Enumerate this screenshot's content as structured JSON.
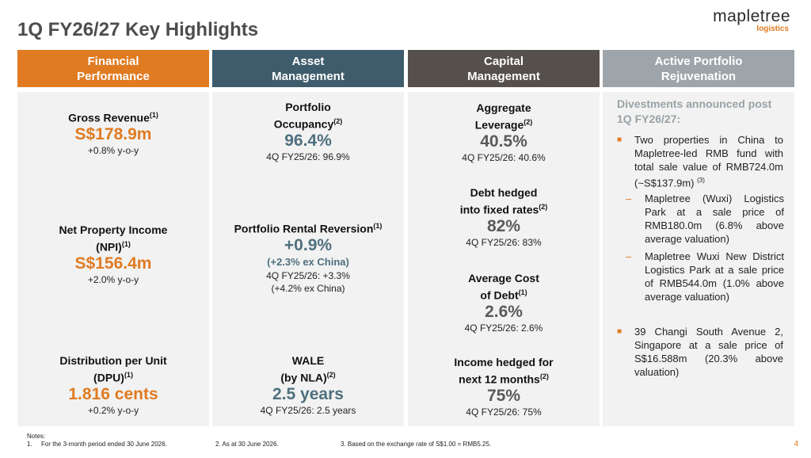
{
  "title": "1Q FY26/27 Key Highlights",
  "logo": {
    "main": "mapletree",
    "sub": "logistics"
  },
  "columns": [
    {
      "line1": "Financial",
      "line2": "Performance"
    },
    {
      "line1": "Asset",
      "line2": "Management"
    },
    {
      "line1": "Capital",
      "line2": "Management"
    },
    {
      "line1": "Active Portfolio",
      "line2": "Rejuvenation"
    }
  ],
  "financial": {
    "gross_revenue": {
      "label": "Gross Revenue",
      "ref": "(1)",
      "value": "S$178.9m",
      "sub": "+0.8% y-o-y"
    },
    "npi": {
      "label1": "Net Property Income",
      "label2": "(NPI)",
      "ref": "(1)",
      "value": "S$156.4m",
      "sub": "+2.0% y-o-y"
    },
    "dpu": {
      "label1": "Distribution per Unit",
      "label2": "(DPU)",
      "ref": "(1)",
      "value": "1.816 cents",
      "sub": "+0.2% y-o-y"
    }
  },
  "asset": {
    "occupancy": {
      "label1": "Portfolio",
      "label2": "Occupancy",
      "ref": "(2)",
      "value": "96.4%",
      "sub": "4Q FY25/26: 96.9%"
    },
    "reversion": {
      "label": "Portfolio Rental Reversion",
      "ref": "(1)",
      "value": "+0.9%",
      "sub_bold": "(+2.3% ex China)",
      "sub1": "4Q FY25/26: +3.3%",
      "sub2": "(+4.2% ex China)"
    },
    "wale": {
      "label1": "WALE",
      "label2": "(by NLA)",
      "ref": "(2)",
      "value": "2.5 years",
      "sub": "4Q FY25/26: 2.5 years"
    }
  },
  "capital": {
    "leverage": {
      "label1": "Aggregate",
      "label2": "Leverage",
      "ref": "(2)",
      "value": "40.5%",
      "sub": "4Q FY25/26: 40.6%"
    },
    "debt_hedged": {
      "label1": "Debt hedged",
      "label2": "into fixed rates",
      "ref": "(2)",
      "value": "82%",
      "sub": "4Q FY25/26: 83%"
    },
    "cost_of_debt": {
      "label1": "Average Cost",
      "label2": "of Debt",
      "ref": "(1)",
      "value": "2.6%",
      "sub": "4Q FY25/26: 2.6%"
    },
    "income_hedged": {
      "label1": "Income hedged for",
      "label2": "next 12 months",
      "ref": "(2)",
      "value": "75%",
      "sub": "4Q FY25/26: 75%"
    }
  },
  "rejuvenation": {
    "title1": "Divestments announced post",
    "title2": "1Q FY26/27:",
    "bullet1": "Two properties in China to Mapletree-led RMB fund with total sale value of RMB724.0m (~S$137.9m)",
    "bullet1_ref": "(3)",
    "sub1": "Mapletree (Wuxi) Logistics Park at a sale price of RMB180.0m (6.8% above average valuation)",
    "sub2": "Mapletree Wuxi New District Logistics Park at a sale price of RMB544.0m (1.0% above average valuation)",
    "bullet2": "39 Changi South Avenue 2, Singapore at a sale price of S$16.588m (20.3% above valuation)"
  },
  "notes": {
    "heading": "Notes:",
    "n1_num": "1.",
    "n1": "For the 3-month period ended 30 June 2026.",
    "n2": "2.    As at 30 June 2026.",
    "n3": "3. Based on the exchange rate of S$1.00 = RMB5.25."
  },
  "page_number": "4",
  "colors": {
    "orange": "#e07b22",
    "teal": "#3e5c6b",
    "charcoal": "#55504b",
    "grey": "#9ea5aa"
  }
}
